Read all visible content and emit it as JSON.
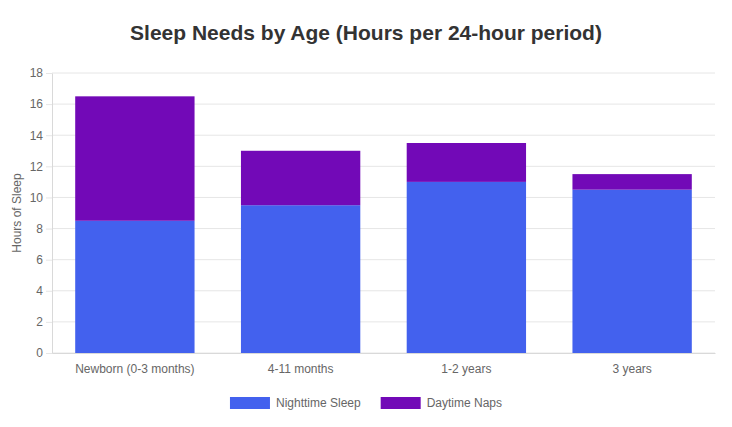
{
  "chart_data": {
    "type": "bar",
    "title": "Sleep Needs by Age (Hours per 24-hour period)",
    "y_label": "Hours of Sleep",
    "categories": [
      "Newborn (0-3 months)",
      "4-11 months",
      "1-2 years",
      "3 years"
    ],
    "series": [
      {
        "name": "Nighttime Sleep",
        "color": "#4361ee",
        "values": [
          8.5,
          9.5,
          11,
          10.5
        ]
      },
      {
        "name": "Daytime Naps",
        "color": "#7209b7",
        "values": [
          8,
          3.5,
          2.5,
          1
        ]
      }
    ],
    "ylim": [
      0,
      18
    ],
    "yticks": [
      0,
      2,
      4,
      6,
      8,
      10,
      12,
      14,
      16,
      18
    ],
    "stacked": true,
    "grid": true,
    "legend": "bottom"
  }
}
